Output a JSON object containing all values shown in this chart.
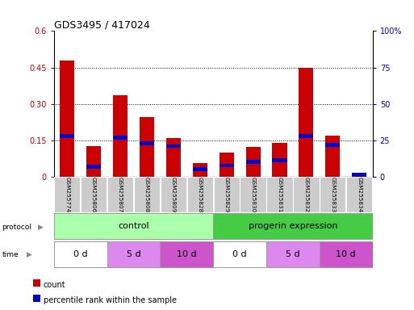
{
  "title": "GDS3495 / 417024",
  "samples": [
    "GSM255774",
    "GSM255806",
    "GSM255807",
    "GSM255808",
    "GSM255809",
    "GSM255828",
    "GSM255829",
    "GSM255830",
    "GSM255831",
    "GSM255832",
    "GSM255833",
    "GSM255834"
  ],
  "count_values": [
    0.478,
    0.127,
    0.335,
    0.245,
    0.158,
    0.055,
    0.098,
    0.123,
    0.138,
    0.448,
    0.168,
    0.005
  ],
  "percentile_values": [
    0.168,
    0.04,
    0.162,
    0.138,
    0.126,
    0.032,
    0.046,
    0.06,
    0.069,
    0.168,
    0.13,
    0.003
  ],
  "count_color": "#cc0000",
  "percentile_color": "#0000cc",
  "ylim_left": [
    0,
    0.6
  ],
  "ylim_right": [
    0,
    100
  ],
  "yticks_left": [
    0,
    0.15,
    0.3,
    0.45,
    0.6
  ],
  "yticks_right": [
    0,
    25,
    50,
    75,
    100
  ],
  "bar_width": 0.55,
  "protocol_labels": [
    "control",
    "progerin expression"
  ],
  "protocol_color_light": "#aaffaa",
  "protocol_color_dark": "#44cc44",
  "time_color_0d": "#ffffff",
  "time_color_5d": "#dd88ee",
  "time_color_10d": "#cc55cc",
  "sample_bg_color": "#cccccc",
  "legend_count_label": "count",
  "legend_percentile_label": "percentile rank within the sample"
}
